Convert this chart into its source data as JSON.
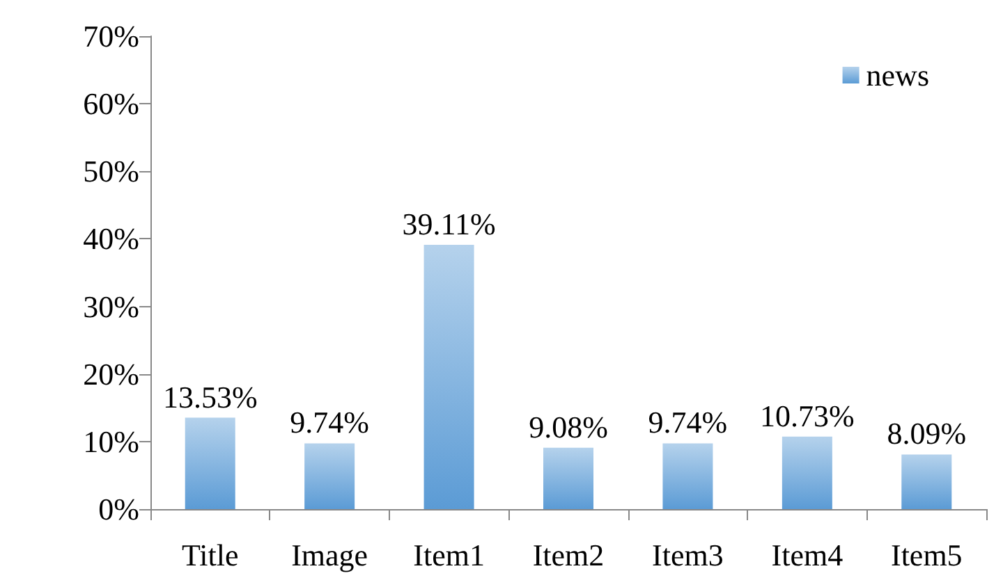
{
  "chart_data": {
    "type": "bar",
    "categories": [
      "Title",
      "Image",
      "Item1",
      "Item2",
      "Item3",
      "Item4",
      "Item5"
    ],
    "series": [
      {
        "name": "news",
        "color": "#5b9bd5",
        "values": [
          13.53,
          9.74,
          39.11,
          9.08,
          9.74,
          10.73,
          8.09
        ],
        "value_labels": [
          "13.53%",
          "9.74%",
          "39.11%",
          "9.08%",
          "9.74%",
          "10.73%",
          "8.09%"
        ]
      }
    ],
    "ylim": [
      0,
      70
    ],
    "yticks": [
      {
        "value": 0,
        "label": "0%"
      },
      {
        "value": 10,
        "label": "10%"
      },
      {
        "value": 20,
        "label": "20%"
      },
      {
        "value": 30,
        "label": "30%"
      },
      {
        "value": 40,
        "label": "40%"
      },
      {
        "value": 50,
        "label": "50%"
      },
      {
        "value": 60,
        "label": "60%"
      },
      {
        "value": 70,
        "label": "70%"
      }
    ],
    "grid": false,
    "legend": "top right"
  }
}
